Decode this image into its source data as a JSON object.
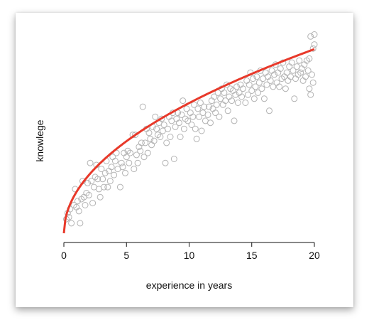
{
  "chart_data": {
    "type": "scatter",
    "title": "",
    "xlabel": "experience in years",
    "ylabel": "knowlege",
    "xlim": [
      0,
      20
    ],
    "ylim": [
      0,
      1.02
    ],
    "x_ticks": [
      "0",
      "5",
      "10",
      "15",
      "20"
    ],
    "y_axis_visible": false,
    "grid": false,
    "point_style": "open-circle",
    "colors": {
      "points": "#b3b3b3",
      "fit_line": "#e8392a"
    },
    "fit_curve": {
      "type": "sqrt",
      "a": 0.205,
      "b": 0.0,
      "x_range": [
        0,
        20
      ]
    },
    "points": [
      [
        0.2,
        0.07
      ],
      [
        0.3,
        0.1
      ],
      [
        0.4,
        0.08
      ],
      [
        0.5,
        0.12
      ],
      [
        0.6,
        0.05
      ],
      [
        0.8,
        0.14
      ],
      [
        0.9,
        0.22
      ],
      [
        1.0,
        0.13
      ],
      [
        1.1,
        0.16
      ],
      [
        1.2,
        0.11
      ],
      [
        1.3,
        0.05
      ],
      [
        1.4,
        0.17
      ],
      [
        1.5,
        0.26
      ],
      [
        1.6,
        0.18
      ],
      [
        1.7,
        0.14
      ],
      [
        1.8,
        0.2
      ],
      [
        1.9,
        0.25
      ],
      [
        2.0,
        0.19
      ],
      [
        2.1,
        0.35
      ],
      [
        2.2,
        0.26
      ],
      [
        2.3,
        0.15
      ],
      [
        2.4,
        0.23
      ],
      [
        2.5,
        0.28
      ],
      [
        2.6,
        0.34
      ],
      [
        2.7,
        0.27
      ],
      [
        2.8,
        0.22
      ],
      [
        2.9,
        0.18
      ],
      [
        3.0,
        0.32
      ],
      [
        3.1,
        0.27
      ],
      [
        3.2,
        0.23
      ],
      [
        3.3,
        0.3
      ],
      [
        3.4,
        0.36
      ],
      [
        3.5,
        0.23
      ],
      [
        3.6,
        0.31
      ],
      [
        3.7,
        0.26
      ],
      [
        3.8,
        0.33
      ],
      [
        3.9,
        0.38
      ],
      [
        4.0,
        0.29
      ],
      [
        4.1,
        0.36
      ],
      [
        4.2,
        0.4
      ],
      [
        4.3,
        0.32
      ],
      [
        4.5,
        0.23
      ],
      [
        4.6,
        0.35
      ],
      [
        4.7,
        0.33
      ],
      [
        4.8,
        0.4
      ],
      [
        4.9,
        0.3
      ],
      [
        5.0,
        0.38
      ],
      [
        5.1,
        0.41
      ],
      [
        5.2,
        0.35
      ],
      [
        5.3,
        0.4
      ],
      [
        5.5,
        0.49
      ],
      [
        5.6,
        0.32
      ],
      [
        5.7,
        0.49
      ],
      [
        5.8,
        0.39
      ],
      [
        5.9,
        0.35
      ],
      [
        6.0,
        0.43
      ],
      [
        6.1,
        0.41
      ],
      [
        6.2,
        0.45
      ],
      [
        6.3,
        0.63
      ],
      [
        6.4,
        0.38
      ],
      [
        6.5,
        0.45
      ],
      [
        6.6,
        0.52
      ],
      [
        6.7,
        0.4
      ],
      [
        6.8,
        0.5
      ],
      [
        6.9,
        0.47
      ],
      [
        7.0,
        0.44
      ],
      [
        7.1,
        0.53
      ],
      [
        7.2,
        0.46
      ],
      [
        7.3,
        0.58
      ],
      [
        7.4,
        0.52
      ],
      [
        7.5,
        0.49
      ],
      [
        7.6,
        0.55
      ],
      [
        7.7,
        0.48
      ],
      [
        7.8,
        0.57
      ],
      [
        7.9,
        0.51
      ],
      [
        8.0,
        0.54
      ],
      [
        8.1,
        0.35
      ],
      [
        8.2,
        0.45
      ],
      [
        8.3,
        0.52
      ],
      [
        8.4,
        0.58
      ],
      [
        8.5,
        0.48
      ],
      [
        8.6,
        0.56
      ],
      [
        8.7,
        0.6
      ],
      [
        8.8,
        0.37
      ],
      [
        8.9,
        0.53
      ],
      [
        9.0,
        0.57
      ],
      [
        9.1,
        0.6
      ],
      [
        9.2,
        0.55
      ],
      [
        9.3,
        0.48
      ],
      [
        9.4,
        0.59
      ],
      [
        9.5,
        0.66
      ],
      [
        9.6,
        0.52
      ],
      [
        9.7,
        0.57
      ],
      [
        9.8,
        0.62
      ],
      [
        9.9,
        0.56
      ],
      [
        10.1,
        0.6
      ],
      [
        10.2,
        0.54
      ],
      [
        10.3,
        0.58
      ],
      [
        10.4,
        0.64
      ],
      [
        10.5,
        0.52
      ],
      [
        10.6,
        0.47
      ],
      [
        10.7,
        0.62
      ],
      [
        10.8,
        0.58
      ],
      [
        10.9,
        0.65
      ],
      [
        11.0,
        0.51
      ],
      [
        11.1,
        0.6
      ],
      [
        11.2,
        0.63
      ],
      [
        11.3,
        0.56
      ],
      [
        11.5,
        0.59
      ],
      [
        11.6,
        0.63
      ],
      [
        11.7,
        0.55
      ],
      [
        11.8,
        0.66
      ],
      [
        11.9,
        0.62
      ],
      [
        12.0,
        0.68
      ],
      [
        12.1,
        0.6
      ],
      [
        12.2,
        0.64
      ],
      [
        12.3,
        0.7
      ],
      [
        12.4,
        0.58
      ],
      [
        12.5,
        0.67
      ],
      [
        12.6,
        0.72
      ],
      [
        12.7,
        0.64
      ],
      [
        12.8,
        0.7
      ],
      [
        12.9,
        0.66
      ],
      [
        13.0,
        0.74
      ],
      [
        13.1,
        0.61
      ],
      [
        13.2,
        0.68
      ],
      [
        13.3,
        0.72
      ],
      [
        13.4,
        0.66
      ],
      [
        13.5,
        0.71
      ],
      [
        13.6,
        0.56
      ],
      [
        13.7,
        0.69
      ],
      [
        13.8,
        0.73
      ],
      [
        13.9,
        0.65
      ],
      [
        14.0,
        0.7
      ],
      [
        14.1,
        0.74
      ],
      [
        14.2,
        0.68
      ],
      [
        14.3,
        0.72
      ],
      [
        14.5,
        0.65
      ],
      [
        14.6,
        0.76
      ],
      [
        14.7,
        0.69
      ],
      [
        14.8,
        0.74
      ],
      [
        14.9,
        0.8
      ],
      [
        15.0,
        0.71
      ],
      [
        15.1,
        0.77
      ],
      [
        15.2,
        0.67
      ],
      [
        15.3,
        0.73
      ],
      [
        15.4,
        0.78
      ],
      [
        15.5,
        0.7
      ],
      [
        15.6,
        0.75
      ],
      [
        15.7,
        0.81
      ],
      [
        15.8,
        0.72
      ],
      [
        15.9,
        0.77
      ],
      [
        16.0,
        0.67
      ],
      [
        16.1,
        0.8
      ],
      [
        16.2,
        0.74
      ],
      [
        16.3,
        0.78
      ],
      [
        16.4,
        0.61
      ],
      [
        16.5,
        0.76
      ],
      [
        16.6,
        0.81
      ],
      [
        16.7,
        0.73
      ],
      [
        16.8,
        0.79
      ],
      [
        16.9,
        0.84
      ],
      [
        17.0,
        0.75
      ],
      [
        17.1,
        0.8
      ],
      [
        17.2,
        0.73
      ],
      [
        17.3,
        0.82
      ],
      [
        17.4,
        0.77
      ],
      [
        17.5,
        0.85
      ],
      [
        17.6,
        0.78
      ],
      [
        17.7,
        0.72
      ],
      [
        17.8,
        0.8
      ],
      [
        17.9,
        0.76
      ],
      [
        18.0,
        0.83
      ],
      [
        18.1,
        0.78
      ],
      [
        18.2,
        0.85
      ],
      [
        18.3,
        0.81
      ],
      [
        18.4,
        0.67
      ],
      [
        18.5,
        0.77
      ],
      [
        18.6,
        0.83
      ],
      [
        18.7,
        0.79
      ],
      [
        18.8,
        0.86
      ],
      [
        18.9,
        0.8
      ],
      [
        19.0,
        0.82
      ],
      [
        19.1,
        0.76
      ],
      [
        19.2,
        0.84
      ],
      [
        19.3,
        0.78
      ],
      [
        19.4,
        0.86
      ],
      [
        19.5,
        0.81
      ],
      [
        19.6,
        0.87
      ],
      [
        19.7,
        0.69
      ],
      [
        19.8,
        0.79
      ],
      [
        19.9,
        0.92
      ],
      [
        20.0,
        0.99
      ],
      [
        19.7,
        0.98
      ],
      [
        20.0,
        0.94
      ],
      [
        19.9,
        0.75
      ],
      [
        19.6,
        0.72
      ]
    ]
  }
}
